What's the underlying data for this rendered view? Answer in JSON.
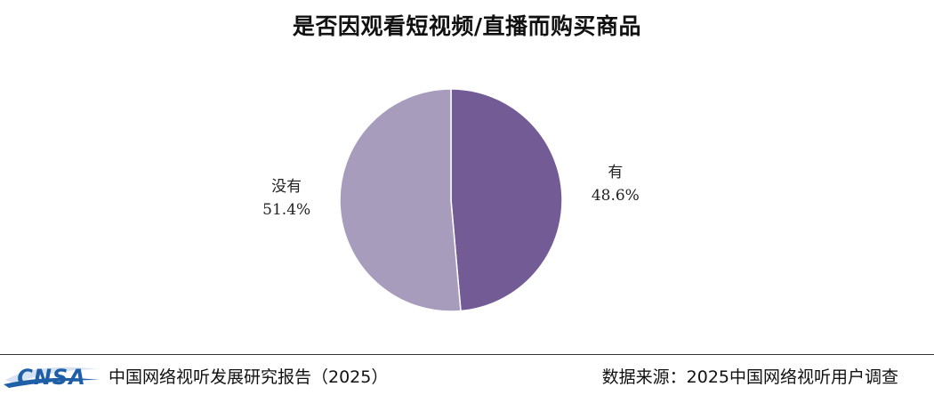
{
  "chart_data": {
    "type": "pie",
    "title": "是否因观看短视频/直播而购买商品",
    "slices": [
      {
        "label": "有",
        "value": 48.6,
        "value_label": "48.6%",
        "color": "#735c96"
      },
      {
        "label": "没有",
        "value": 51.4,
        "value_label": "51.4%",
        "color": "#a89cbd"
      }
    ],
    "start_direction": "top, clockwise",
    "legend": "none"
  },
  "footer": {
    "logo_text": "CNSA",
    "left_text": "中国网络视听发展研究报告（2025）",
    "right_text": "数据来源：2025中国网络视听用户调查"
  },
  "colors": {
    "logo_blue": "#1f5fa8",
    "slice_border": "#ffffff"
  }
}
